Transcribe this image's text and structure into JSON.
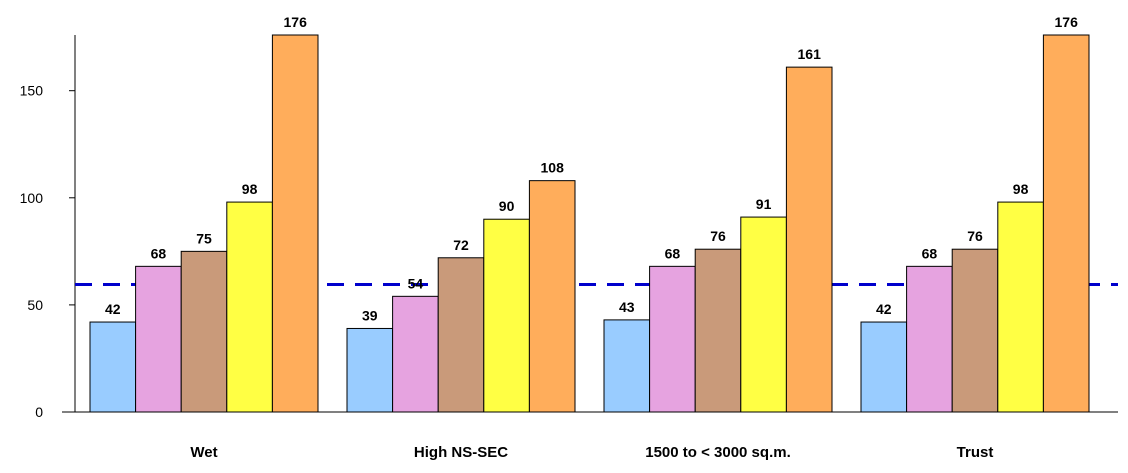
{
  "chart_data": {
    "type": "bar",
    "title": "",
    "xlabel": "",
    "ylabel": "",
    "categories": [
      "Wet",
      "High NS-SEC",
      "1500 to < 3000 sq.m.",
      "Trust"
    ],
    "series": [
      {
        "color": "#99ccff",
        "values": [
          42,
          39,
          43,
          42
        ]
      },
      {
        "color": "#e6a3e0",
        "values": [
          68,
          54,
          68,
          68
        ]
      },
      {
        "color": "#c99a7a",
        "values": [
          75,
          72,
          76,
          76
        ]
      },
      {
        "color": "#ffff44",
        "values": [
          98,
          90,
          91,
          98
        ]
      },
      {
        "color": "#ffad5b",
        "values": [
          176,
          108,
          161,
          176
        ]
      }
    ],
    "yticks": [
      0,
      50,
      100,
      150
    ],
    "ylim": [
      0,
      176
    ],
    "reference_line": {
      "value": 59.5,
      "color": "#0000cc",
      "style": "dashed"
    },
    "data_labels": true,
    "grid": false,
    "legend": "none"
  }
}
